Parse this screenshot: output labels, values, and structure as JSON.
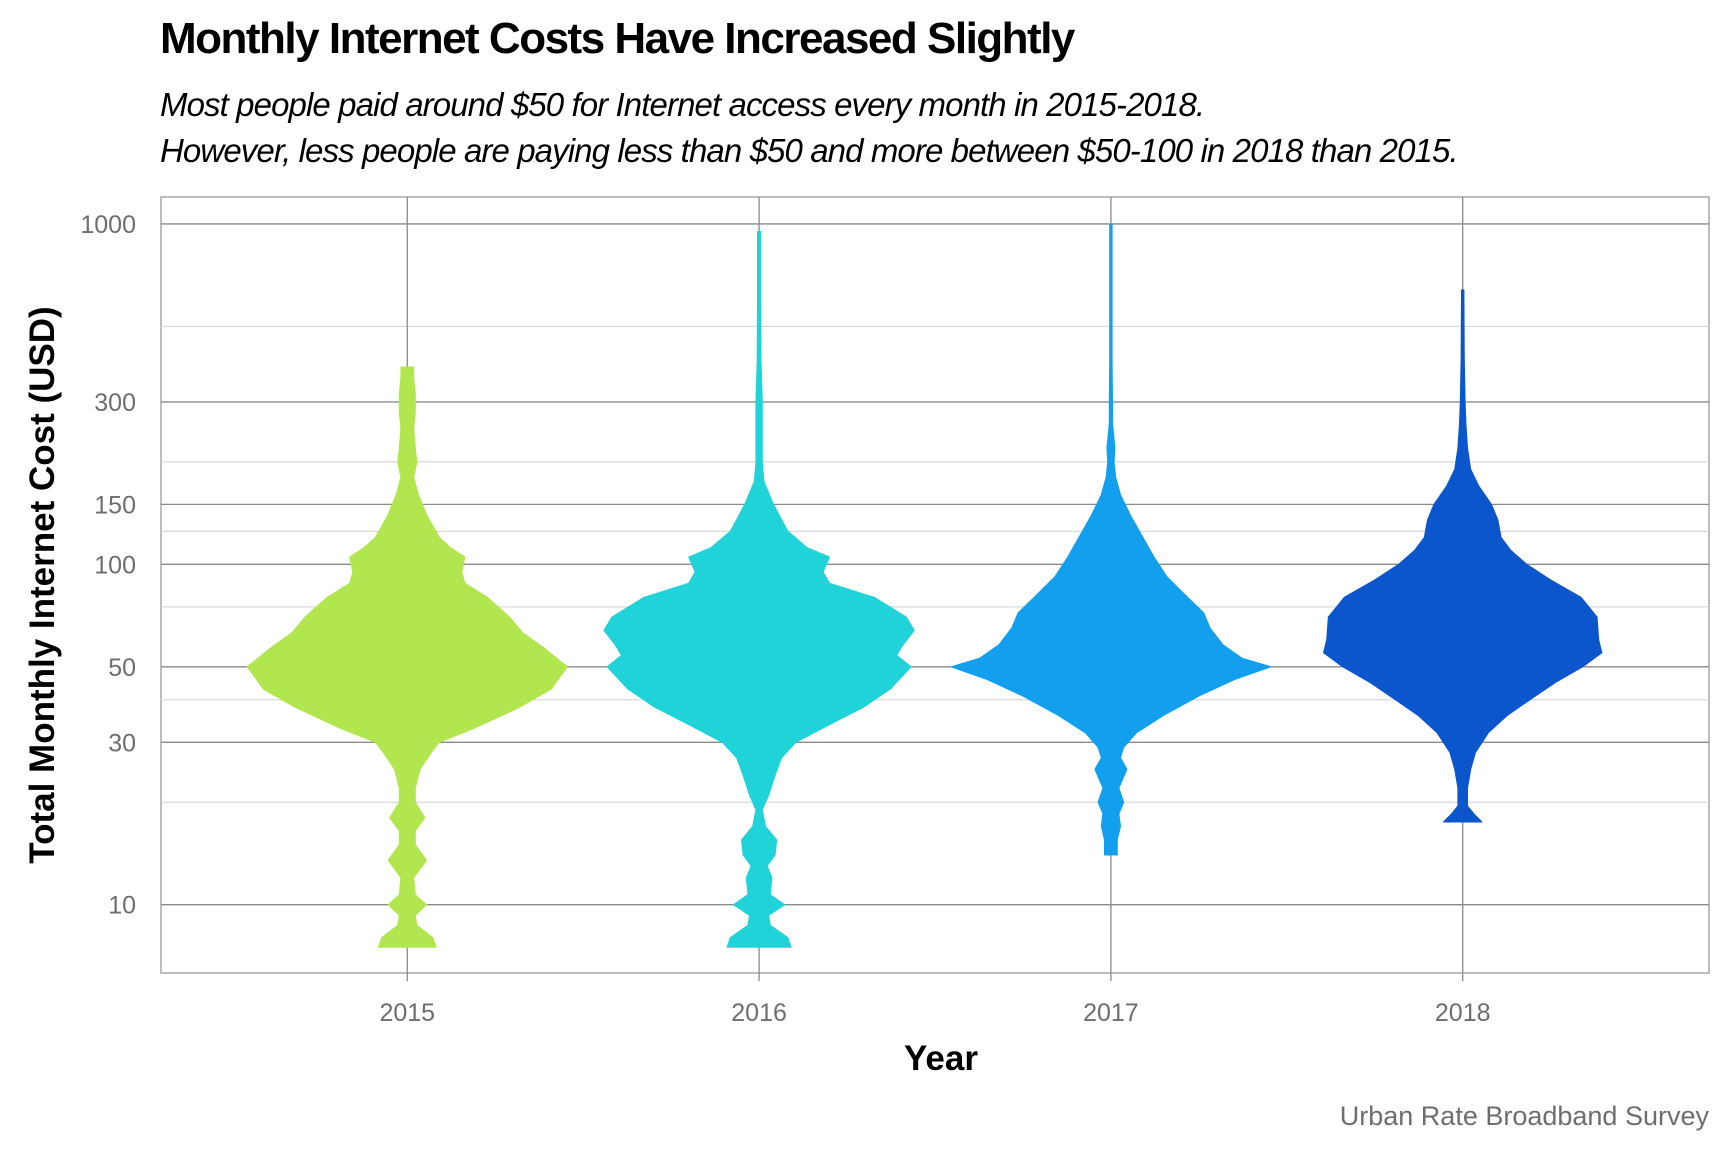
{
  "chart_data": {
    "type": "violin",
    "title": "Monthly Internet Costs Have Increased Slightly",
    "subtitle": [
      "Most people paid around $50 for Internet access every month in 2015-2018.",
      "However, less people are paying less than $50 and more between $50-100 in 2018 than 2015."
    ],
    "xlabel": "Year",
    "ylabel": "Total Monthly Internet Cost (USD)",
    "caption": "Urban Rate Broadband Survey",
    "y_scale": "log10",
    "ylim": [
      6.3,
      1200
    ],
    "y_ticks": [
      10,
      30,
      50,
      100,
      150,
      300,
      1000
    ],
    "y_minor_ticks": [
      20,
      40,
      75,
      125,
      200,
      500
    ],
    "grid": true,
    "categories": [
      "2015",
      "2016",
      "2017",
      "2018"
    ],
    "series": [
      {
        "name": "2015",
        "color": "#b2e64f",
        "min": 7.5,
        "max": 380,
        "density": [
          [
            7.5,
            0.18
          ],
          [
            8,
            0.16
          ],
          [
            8.7,
            0.06
          ],
          [
            9.3,
            0.05
          ],
          [
            10,
            0.12
          ],
          [
            10.7,
            0.05
          ],
          [
            12,
            0.04
          ],
          [
            13.5,
            0.12
          ],
          [
            15,
            0.05
          ],
          [
            16.5,
            0.05
          ],
          [
            18,
            0.11
          ],
          [
            20,
            0.05
          ],
          [
            22,
            0.05
          ],
          [
            25,
            0.08
          ],
          [
            28,
            0.15
          ],
          [
            30,
            0.2
          ],
          [
            33,
            0.42
          ],
          [
            38,
            0.7
          ],
          [
            43,
            0.9
          ],
          [
            50,
            1.0
          ],
          [
            57,
            0.85
          ],
          [
            63,
            0.72
          ],
          [
            70,
            0.64
          ],
          [
            80,
            0.5
          ],
          [
            88,
            0.36
          ],
          [
            95,
            0.34
          ],
          [
            105,
            0.36
          ],
          [
            112,
            0.27
          ],
          [
            120,
            0.2
          ],
          [
            140,
            0.12
          ],
          [
            160,
            0.07
          ],
          [
            180,
            0.04
          ],
          [
            200,
            0.06
          ],
          [
            220,
            0.05
          ],
          [
            250,
            0.04
          ],
          [
            280,
            0.05
          ],
          [
            320,
            0.05
          ],
          [
            350,
            0.04
          ],
          [
            380,
            0.04
          ]
        ]
      },
      {
        "name": "2016",
        "color": "#20d3d8",
        "min": 7.5,
        "max": 950,
        "density": [
          [
            7.5,
            0.2
          ],
          [
            8,
            0.18
          ],
          [
            8.7,
            0.07
          ],
          [
            9.3,
            0.06
          ],
          [
            10,
            0.16
          ],
          [
            10.7,
            0.07
          ],
          [
            12,
            0.08
          ],
          [
            13,
            0.05
          ],
          [
            14,
            0.1
          ],
          [
            15.5,
            0.11
          ],
          [
            17,
            0.04
          ],
          [
            19,
            0.02
          ],
          [
            21,
            0.06
          ],
          [
            24,
            0.1
          ],
          [
            27,
            0.14
          ],
          [
            30,
            0.23
          ],
          [
            34,
            0.45
          ],
          [
            38,
            0.65
          ],
          [
            43,
            0.82
          ],
          [
            50,
            0.95
          ],
          [
            54,
            0.86
          ],
          [
            58,
            0.9
          ],
          [
            64,
            0.97
          ],
          [
            70,
            0.92
          ],
          [
            80,
            0.72
          ],
          [
            88,
            0.44
          ],
          [
            95,
            0.4
          ],
          [
            105,
            0.44
          ],
          [
            112,
            0.3
          ],
          [
            125,
            0.18
          ],
          [
            150,
            0.09
          ],
          [
            175,
            0.03
          ],
          [
            200,
            0.02
          ],
          [
            300,
            0.02
          ],
          [
            400,
            0.012
          ],
          [
            600,
            0.01
          ],
          [
            950,
            0.01
          ]
        ]
      },
      {
        "name": "2017",
        "color": "#12a0ee",
        "min": 14,
        "max": 1000,
        "density": [
          [
            14,
            0.04
          ],
          [
            15.5,
            0.04
          ],
          [
            17,
            0.06
          ],
          [
            18.5,
            0.05
          ],
          [
            20,
            0.08
          ],
          [
            22,
            0.05
          ],
          [
            25,
            0.1
          ],
          [
            27,
            0.06
          ],
          [
            29,
            0.08
          ],
          [
            32,
            0.16
          ],
          [
            36,
            0.33
          ],
          [
            41,
            0.55
          ],
          [
            46,
            0.78
          ],
          [
            50,
            1.0
          ],
          [
            53,
            0.82
          ],
          [
            58,
            0.7
          ],
          [
            65,
            0.62
          ],
          [
            72,
            0.58
          ],
          [
            80,
            0.48
          ],
          [
            92,
            0.35
          ],
          [
            105,
            0.27
          ],
          [
            120,
            0.2
          ],
          [
            140,
            0.12
          ],
          [
            160,
            0.06
          ],
          [
            180,
            0.03
          ],
          [
            200,
            0.02
          ],
          [
            220,
            0.025
          ],
          [
            260,
            0.01
          ],
          [
            300,
            0.01
          ],
          [
            400,
            0.007
          ],
          [
            600,
            0.005
          ],
          [
            1000,
            0.004
          ]
        ]
      },
      {
        "name": "2018",
        "color": "#0b56cc",
        "min": 17.5,
        "max": 640,
        "density": [
          [
            17.5,
            0.12
          ],
          [
            18.5,
            0.07
          ],
          [
            19.5,
            0.03
          ],
          [
            22,
            0.03
          ],
          [
            25,
            0.05
          ],
          [
            28,
            0.08
          ],
          [
            32,
            0.16
          ],
          [
            36,
            0.28
          ],
          [
            40,
            0.42
          ],
          [
            45,
            0.58
          ],
          [
            50,
            0.75
          ],
          [
            55,
            0.87
          ],
          [
            60,
            0.85
          ],
          [
            70,
            0.84
          ],
          [
            80,
            0.74
          ],
          [
            90,
            0.55
          ],
          [
            100,
            0.4
          ],
          [
            110,
            0.3
          ],
          [
            120,
            0.24
          ],
          [
            135,
            0.22
          ],
          [
            150,
            0.18
          ],
          [
            170,
            0.1
          ],
          [
            190,
            0.05
          ],
          [
            220,
            0.03
          ],
          [
            260,
            0.02
          ],
          [
            300,
            0.015
          ],
          [
            400,
            0.01
          ],
          [
            640,
            0.005
          ]
        ]
      }
    ]
  }
}
